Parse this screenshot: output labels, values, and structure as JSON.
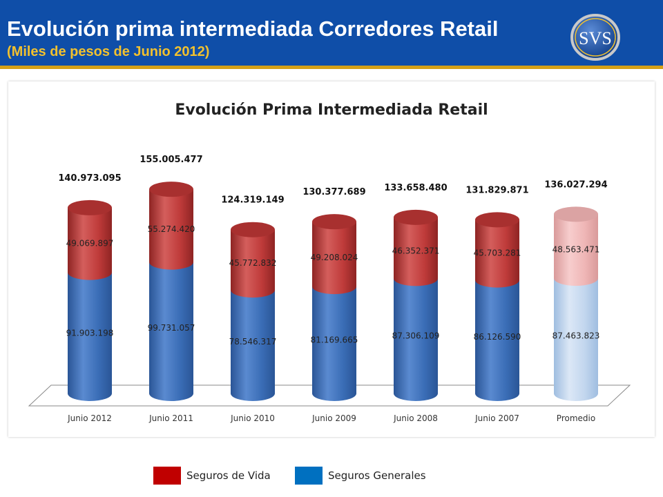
{
  "header": {
    "title": "Evolución prima intermediada Corredores Retail",
    "subtitle": "(Miles de pesos de Junio 2012)",
    "logo_text": "SVS"
  },
  "legend": [
    {
      "label": "Seguros de Vida",
      "color": "#c00000"
    },
    {
      "label": "Seguros Generales",
      "color": "#0070c0"
    }
  ],
  "chart_data": {
    "type": "bar",
    "stacked": true,
    "shape": "cylinder-3d",
    "title": "Evolución Prima Intermediada Retail",
    "categories": [
      "Junio 2012",
      "Junio 2011",
      "Junio 2010",
      "Junio 2009",
      "Junio 2008",
      "Junio 2007",
      "Promedio"
    ],
    "series": [
      {
        "name": "Seguros Generales",
        "values": [
          91903198,
          99731057,
          78546317,
          81169665,
          87306109,
          86126590,
          87463823
        ],
        "labels": [
          "91.903.198",
          "99.731.057",
          "78.546.317",
          "81.169.665",
          "87.306.109",
          "86.126.590",
          "87.463.823"
        ]
      },
      {
        "name": "Seguros de Vida",
        "values": [
          49069897,
          55274420,
          45772832,
          49208024,
          46352371,
          45703281,
          48563471
        ],
        "labels": [
          "49.069.897",
          "55.274.420",
          "45.772.832",
          "49.208.024",
          "46.352.371",
          "45.703.281",
          "48.563.471"
        ]
      }
    ],
    "totals": [
      140973095,
      155005477,
      124319149,
      130377689,
      133658480,
      131829871,
      136027294
    ],
    "total_labels": [
      "140.973.095",
      "155.005.477",
      "124.319.149",
      "130.377.689",
      "133.658.480",
      "131.829.871",
      "136.027.294"
    ],
    "highlight_last": true,
    "colors": {
      "generales": "#3c6fb8",
      "vida": "#c0393a",
      "generales_light": "#c4d8ef",
      "vida_light": "#f0b7b7"
    },
    "legend_position": "bottom",
    "grid": false
  }
}
